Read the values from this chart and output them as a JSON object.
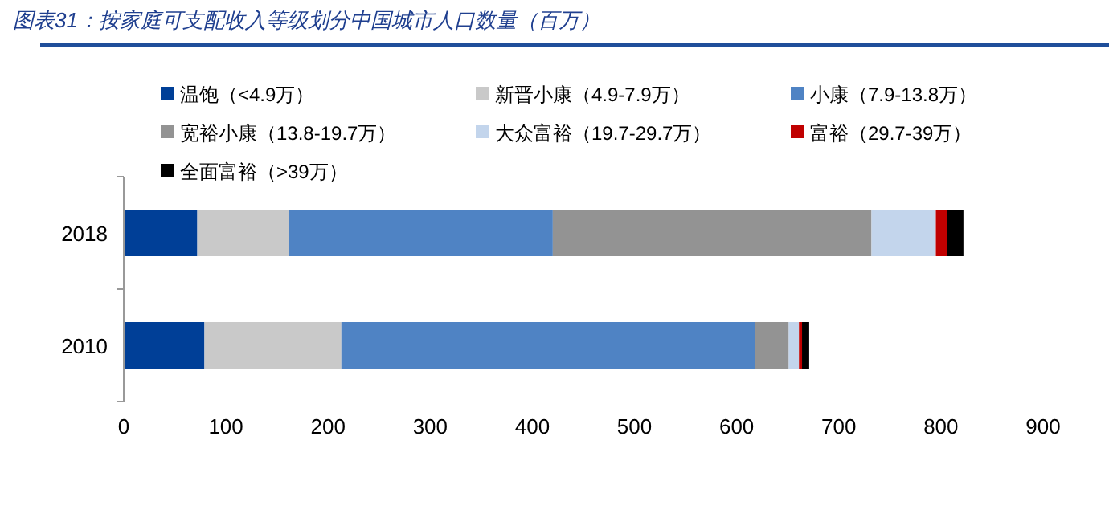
{
  "chart_data": {
    "type": "bar",
    "orientation": "horizontal",
    "stacked": true,
    "title": "图表31：按家庭可支配收入等级划分中国城市人口数量（百万）",
    "categories": [
      "2018",
      "2010"
    ],
    "series": [
      {
        "name": "温饱（<4.9万）",
        "color": "#003f97",
        "values": [
          72,
          79
        ]
      },
      {
        "name": "新晋小康（4.9-7.9万）",
        "color": "#c9c9c9",
        "values": [
          90,
          134
        ]
      },
      {
        "name": "小康（7.9-13.8万）",
        "color": "#4f83c4",
        "values": [
          258,
          405
        ]
      },
      {
        "name": "宽裕小康（13.8-19.7万）",
        "color": "#939393",
        "values": [
          312,
          33
        ]
      },
      {
        "name": "大众富裕（19.7-29.7万）",
        "color": "#c3d5ec",
        "values": [
          63,
          10
        ]
      },
      {
        "name": "富裕（29.7-39万）",
        "color": "#c00000",
        "values": [
          11,
          3
        ]
      },
      {
        "name": "全面富裕（>39万）",
        "color": "#000000",
        "values": [
          16,
          7
        ]
      }
    ],
    "xlim": [
      0,
      900
    ],
    "xticks": [
      0,
      100,
      200,
      300,
      400,
      500,
      600,
      700,
      800,
      900
    ],
    "grid": false,
    "legend": "top"
  }
}
